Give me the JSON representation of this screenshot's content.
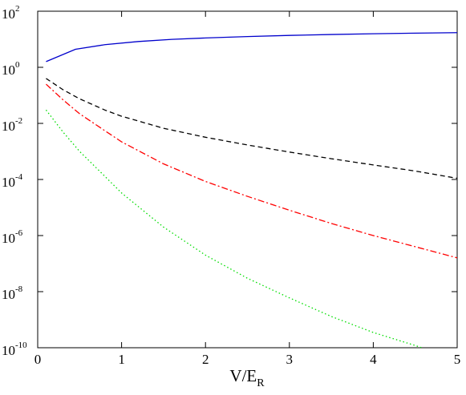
{
  "chart_data": {
    "type": "line",
    "title": "",
    "xlabel": "V/E",
    "xlabel_subscript": "R",
    "ylabel": "",
    "xlim": [
      0,
      5
    ],
    "ylim": [
      1e-10,
      100
    ],
    "yscale": "log",
    "grid": false,
    "x_ticks": [
      "0",
      "1",
      "2",
      "3",
      "4",
      "5"
    ],
    "y_ticks": [
      {
        "base": "10",
        "exp": "2"
      },
      {
        "base": "10",
        "exp": "0"
      },
      {
        "base": "10",
        "exp": "-2"
      },
      {
        "base": "10",
        "exp": "-4"
      },
      {
        "base": "10",
        "exp": "-6"
      },
      {
        "base": "10",
        "exp": "-8"
      },
      {
        "base": "10",
        "exp": "-10"
      }
    ],
    "series": [
      {
        "color": "#0000cc",
        "style": "solid",
        "x": [
          0.1,
          0.45,
          0.8,
          1.2,
          1.6,
          2.0,
          2.5,
          3.0,
          3.5,
          4.0,
          4.5,
          5.0
        ],
        "y": [
          1.6,
          4.4,
          6.4,
          8.3,
          9.9,
          11.1,
          12.5,
          13.7,
          14.8,
          15.7,
          16.5,
          17.2
        ]
      },
      {
        "color": "#000000",
        "style": "dashed",
        "x": [
          0.1,
          0.3,
          0.5,
          0.8,
          1.0,
          1.5,
          2.0,
          2.5,
          3.0,
          3.5,
          4.0,
          4.5,
          5.0
        ],
        "y": [
          0.4,
          0.16,
          0.075,
          0.03,
          0.018,
          0.0067,
          0.0032,
          0.0017,
          0.00095,
          0.00055,
          0.00033,
          0.0002,
          0.00011
        ]
      },
      {
        "color": "#ff0000",
        "style": "dashdot",
        "x": [
          0.1,
          0.3,
          0.5,
          0.8,
          1.0,
          1.5,
          2.0,
          2.5,
          3.0,
          3.5,
          4.0,
          4.5,
          5.0
        ],
        "y": [
          0.25,
          0.07,
          0.022,
          0.0055,
          0.0022,
          0.00036,
          8.5e-05,
          2.5e-05,
          8e-06,
          2.7e-06,
          1e-06,
          4e-07,
          1.6e-07
        ]
      },
      {
        "color": "#00dd00",
        "style": "dotted",
        "x": [
          0.1,
          0.3,
          0.5,
          0.8,
          1.0,
          1.5,
          2.0,
          2.5,
          3.0,
          3.5,
          4.0,
          4.5,
          5.0
        ],
        "y": [
          0.03,
          0.005,
          0.001,
          0.00013,
          3.3e-05,
          2e-06,
          2e-07,
          3e-08,
          6e-09,
          1.3e-09,
          3.5e-10,
          1.2e-10,
          3.5e-11
        ]
      }
    ]
  }
}
